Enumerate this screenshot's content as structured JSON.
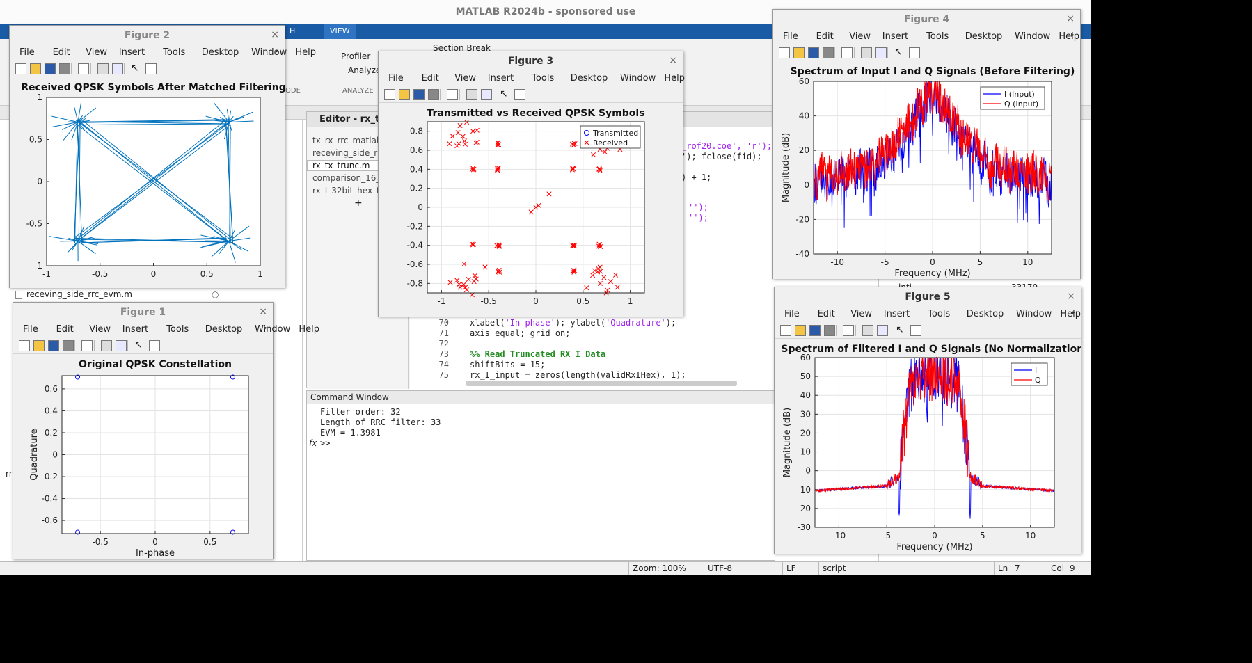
{
  "app": {
    "title": "MATLAB R2024b - sponsored use",
    "ribbon_tabs": [
      "H",
      "VIEW"
    ],
    "toolstrip": {
      "profiler": "Profiler",
      "analyze": "Analyze",
      "section_break": "Section Break",
      "group_code": "ODE",
      "group_analyze": "ANALYZE"
    },
    "left_file": "receving_side_rrc_evm.m",
    "left_bottom_label": "rr"
  },
  "editor": {
    "title": "Editor - rx_tx_t",
    "files": [
      "tx_rx_rrc_matlab_(",
      "receving_side_rrc",
      "rx_tx_trunc.m",
      "comparison_16_3",
      "rx_I_32bit_hex_tru"
    ],
    "add_label": "+",
    "top_fragments": [
      "_rof20.coe', 'r');",
      "'); fclose(fid);",
      ") + 1;",
      "'');",
      "'');"
    ],
    "lines": [
      {
        "num": "70",
        "text_a": "xlabel(",
        "str_a": "'In-phase'",
        "text_b": "); ylabel(",
        "str_b": "'Quadrature'",
        "text_c": ");"
      },
      {
        "num": "71",
        "text": "axis equal; grid on;"
      },
      {
        "num": "72",
        "text": ""
      },
      {
        "num": "73",
        "comment": "%% Read Truncated RX I Data"
      },
      {
        "num": "74",
        "text": "shiftBits = 15;"
      },
      {
        "num": "75",
        "text": "rx_I_input = zeros(length(validRxIHex), 1);"
      }
    ]
  },
  "command_window": {
    "title": "Command Window",
    "lines": [
      "Filter order: 32",
      "Length of RRC filter: 33",
      "EVM = 1.3981"
    ],
    "prompt_icon": "fx",
    "prompt": ">>"
  },
  "workspace": {
    "rows": [
      "inti",
      "33170"
    ]
  },
  "statusbar": {
    "zoom": "Zoom: 100%",
    "encoding": "UTF-8",
    "eol": "LF",
    "type": "script",
    "ln_label": "Ln",
    "ln": "7",
    "col_label": "Col",
    "col": "9"
  },
  "menus": [
    "File",
    "Edit",
    "View",
    "Insert",
    "Tools",
    "Desktop",
    "Window",
    "Help"
  ],
  "icons": [
    "new-figure-icon",
    "open-icon",
    "save-icon",
    "print-icon",
    "link-icon",
    "colorbar-icon",
    "legend-icon",
    "pointer-icon",
    "property-inspector-icon"
  ],
  "figures": {
    "fig1": {
      "title": "Figure 1"
    },
    "fig2": {
      "title": "Figure 2"
    },
    "fig3": {
      "title": "Figure 3"
    },
    "fig4": {
      "title": "Figure 4"
    },
    "fig5": {
      "title": "Figure 5"
    }
  },
  "colors": {
    "blue": "#0072bd",
    "red": "#ff0000",
    "line_blue": "#0000ff",
    "ribbon": "#1a5ba6"
  },
  "chart_data": [
    {
      "id": "fig1",
      "type": "scatter",
      "title": "Original QPSK Constellation",
      "xlabel": "In-phase",
      "ylabel": "Quadrature",
      "xlim": [
        -0.85,
        0.85
      ],
      "ylim": [
        -0.72,
        0.72
      ],
      "xticks": [
        -0.5,
        0,
        0.5
      ],
      "xtick_labels": [
        "-0.5",
        "0",
        "0.5"
      ],
      "yticks": [
        -0.6,
        -0.4,
        -0.2,
        0,
        0.2,
        0.4,
        0.6
      ],
      "ytick_labels": [
        "-0.6",
        "-0.4",
        "-0.2",
        "0",
        "0.2",
        "0.4",
        "0.6"
      ],
      "grid": true,
      "points": [
        [
          -0.707,
          0.707
        ],
        [
          0.707,
          0.707
        ],
        [
          -0.707,
          -0.707
        ],
        [
          0.707,
          -0.707
        ]
      ],
      "marker": "circle",
      "color": "#0000ff"
    },
    {
      "id": "fig2",
      "type": "line",
      "title": "Received QPSK Symbols After Matched Filtering",
      "xlim": [
        -1,
        1
      ],
      "ylim": [
        -1,
        1
      ],
      "xticks": [
        -1,
        -0.5,
        0,
        0.5,
        1
      ],
      "xtick_labels": [
        "-1",
        "-0.5",
        "0",
        "0.5",
        "1"
      ],
      "yticks": [
        -1,
        -0.5,
        0,
        0.5,
        1
      ],
      "ytick_labels": [
        "-1",
        "-0.5",
        "0",
        "0.5",
        "1"
      ],
      "grid": false,
      "corners": [
        [
          -0.707,
          0.707
        ],
        [
          0.707,
          0.707
        ],
        [
          0.707,
          -0.707
        ],
        [
          -0.707,
          -0.707
        ]
      ],
      "color": "#0072bd"
    },
    {
      "id": "fig3",
      "type": "scatter",
      "title": "Transmitted vs Received QPSK Symbols",
      "xlim": [
        -1.15,
        1.15
      ],
      "ylim": [
        -0.9,
        0.9
      ],
      "xticks": [
        -1,
        -0.5,
        0,
        0.5,
        1
      ],
      "xtick_labels": [
        "-1",
        "-0.5",
        "0",
        "0.5",
        "1"
      ],
      "yticks": [
        -0.8,
        -0.6,
        -0.4,
        -0.2,
        0,
        0.2,
        0.4,
        0.6,
        0.8
      ],
      "ytick_labels": [
        "-0.8",
        "-0.6",
        "-0.4",
        "-0.2",
        "0",
        "0.2",
        "0.4",
        "0.6",
        "0.8"
      ],
      "grid": true,
      "legend": [
        "Transmitted",
        "Received"
      ],
      "legend_location": "top-right",
      "received_clusters": [
        {
          "x": -0.4,
          "y": 0.4
        },
        {
          "x": -0.67,
          "y": 0.4
        },
        {
          "x": 0.4,
          "y": 0.4
        },
        {
          "x": 0.67,
          "y": 0.4
        },
        {
          "x": -0.4,
          "y": -0.4
        },
        {
          "x": -0.67,
          "y": -0.4
        },
        {
          "x": 0.4,
          "y": -0.4
        },
        {
          "x": 0.67,
          "y": -0.4
        },
        {
          "x": -0.4,
          "y": 0.67
        },
        {
          "x": 0.4,
          "y": 0.67
        },
        {
          "x": -0.4,
          "y": -0.67
        },
        {
          "x": 0.4,
          "y": -0.67
        },
        {
          "x": -0.67,
          "y": 0.67
        },
        {
          "x": 0.67,
          "y": 0.67
        },
        {
          "x": -0.67,
          "y": -0.67
        },
        {
          "x": 0.67,
          "y": -0.67
        }
      ],
      "received_center": [
        [
          -0.05,
          -0.05
        ],
        [
          0.0,
          0.0
        ],
        [
          0.03,
          0.02
        ],
        [
          0.14,
          0.14
        ]
      ],
      "colors": {
        "Transmitted": "#0000ff",
        "Received": "#ff0000"
      }
    },
    {
      "id": "fig4",
      "type": "line",
      "title": "Spectrum of Input I and Q Signals (Before Filtering)",
      "xlabel": "Frequency (MHz)",
      "ylabel": "Magnitude (dB)",
      "xlim": [
        -12.5,
        12.5
      ],
      "ylim": [
        -40,
        60
      ],
      "xticks": [
        -10,
        -5,
        0,
        5,
        10
      ],
      "xtick_labels": [
        "-10",
        "-5",
        "0",
        "5",
        "10"
      ],
      "yticks": [
        -40,
        -20,
        0,
        20,
        40,
        60
      ],
      "ytick_labels": [
        "-40",
        "-20",
        "0",
        "20",
        "40",
        "60"
      ],
      "grid": true,
      "legend": [
        "I (Input)",
        "Q (Input)"
      ],
      "legend_location": "top-right",
      "series": [
        {
          "name": "I (Input)",
          "color": "#0000ff"
        },
        {
          "name": "Q (Input)",
          "color": "#ff0000"
        }
      ]
    },
    {
      "id": "fig5",
      "type": "line",
      "title": "Spectrum of Filtered I and Q Signals (No Normalization)",
      "xlabel": "Frequency (MHz)",
      "ylabel": "Magnitude (dB)",
      "xlim": [
        -12.5,
        12.5
      ],
      "ylim": [
        -30,
        60
      ],
      "xticks": [
        -10,
        -5,
        0,
        5,
        10
      ],
      "xtick_labels": [
        "-10",
        "-5",
        "0",
        "5",
        "10"
      ],
      "yticks": [
        -30,
        -20,
        -10,
        0,
        10,
        20,
        30,
        40,
        50,
        60
      ],
      "ytick_labels": [
        "-30",
        "-20",
        "-10",
        "0",
        "10",
        "20",
        "30",
        "40",
        "50",
        "60"
      ],
      "grid": true,
      "legend": [
        "I",
        "Q"
      ],
      "legend_location": "top-right",
      "series": [
        {
          "name": "I",
          "color": "#0000ff"
        },
        {
          "name": "Q",
          "color": "#ff0000"
        }
      ]
    }
  ]
}
